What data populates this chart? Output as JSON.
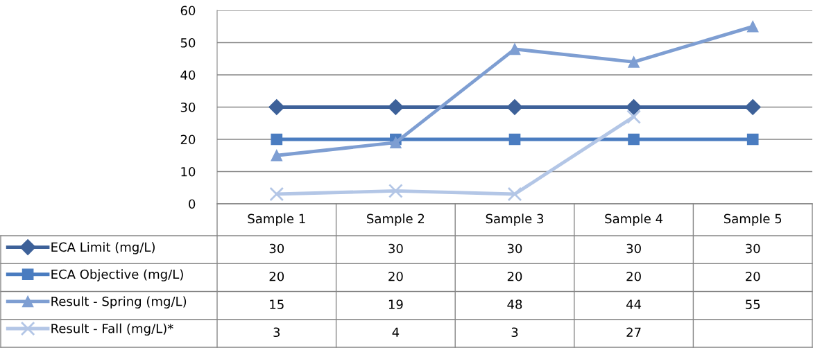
{
  "chart_data": {
    "type": "line",
    "categories": [
      "Sample 1",
      "Sample 2",
      "Sample 3",
      "Sample 4",
      "Sample 5"
    ],
    "series": [
      {
        "name": "ECA Limit (mg/L)",
        "color": "#3d6199",
        "marker": "diamond",
        "values": [
          30,
          30,
          30,
          30,
          30
        ]
      },
      {
        "name": "ECA Objective (mg/L)",
        "color": "#4a7cc0",
        "marker": "square",
        "values": [
          20,
          20,
          20,
          20,
          20
        ]
      },
      {
        "name": "Result - Spring (mg/L)",
        "color": "#7e9ed2",
        "marker": "triangle",
        "values": [
          15,
          19,
          48,
          44,
          55
        ]
      },
      {
        "name": "Result - Fall (mg/L)*",
        "color": "#b3c6e6",
        "marker": "cross",
        "values": [
          3,
          4,
          3,
          27,
          null
        ]
      }
    ],
    "ylim": [
      0,
      60
    ],
    "yticks": [
      0,
      10,
      20,
      30,
      40,
      50,
      60
    ],
    "grid": "y",
    "legend": "bottom left",
    "data_labels": true,
    "line_style": "solid"
  }
}
